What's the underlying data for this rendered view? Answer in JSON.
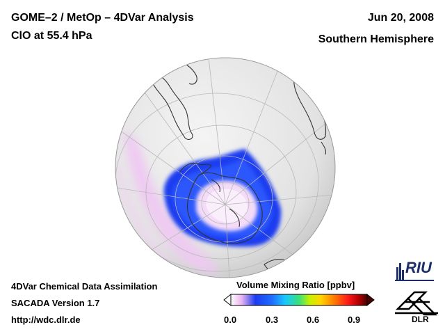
{
  "header": {
    "title_line1": "GOME–2 / MetOp – 4DVar Analysis",
    "title_line2": "ClO at 55.4 hPa",
    "date": "Jun 20, 2008",
    "hemisphere": "Southern Hemisphere"
  },
  "footer": {
    "line1": "4DVar Chemical Data Assimilation",
    "line2": "SACADA Version 1.7",
    "line3": "http://wdc.dlr.de"
  },
  "colorbar": {
    "title": "Volume Mixing Ratio [ppbv]",
    "ticks": [
      "0.0",
      "0.3",
      "0.6",
      "0.9"
    ],
    "range": [
      0.0,
      1.0
    ],
    "colors": [
      "#ffffff",
      "#e8b3f0",
      "#1c3cf0",
      "#1e6bff",
      "#19c8ff",
      "#39e07a",
      "#c8f000",
      "#ffd400",
      "#ff7a00",
      "#ff1a1a",
      "#b00000",
      "#4a0000"
    ]
  },
  "logos": {
    "riu": "RIU",
    "dlr": "DLR"
  },
  "colors": {
    "globe_fill": "#e6e6e6",
    "land_line": "#333333",
    "grid_line": "#b8b8b8",
    "high_clo": "#1c3cf0",
    "low_clo": "#e8b3f0"
  }
}
